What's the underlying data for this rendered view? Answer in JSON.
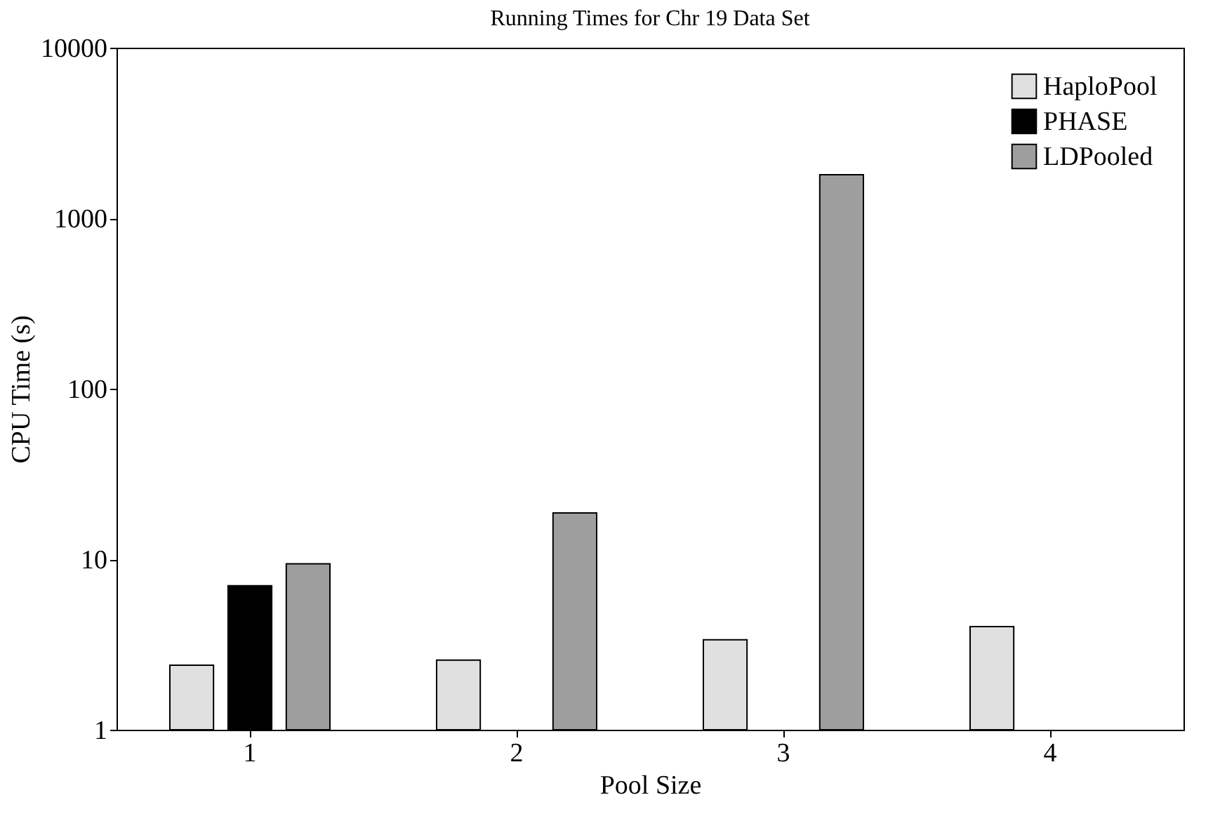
{
  "chart_data": {
    "type": "bar",
    "title": "Running Times for Chr 19 Data Set",
    "xlabel": "Pool Size",
    "ylabel": "CPU Time (s)",
    "categories": [
      "1",
      "2",
      "3",
      "4"
    ],
    "series": [
      {
        "name": "HaploPool",
        "color": "#e0e0e0",
        "values": [
          2.39,
          2.56,
          3.37,
          4.03
        ]
      },
      {
        "name": "PHASE",
        "color": "#000000",
        "values": [
          7.0,
          null,
          null,
          null
        ]
      },
      {
        "name": "LDPooled",
        "color": "#9e9e9e",
        "values": [
          9.4,
          18.7,
          1800,
          null
        ]
      }
    ],
    "log": "y",
    "ylim": [
      1,
      10000
    ],
    "yticks": [
      1,
      10,
      100,
      1000,
      10000
    ],
    "legend": "top right",
    "grid": false
  }
}
